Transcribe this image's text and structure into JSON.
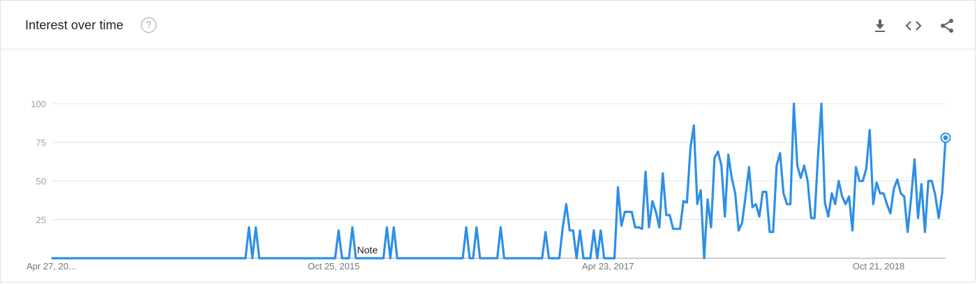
{
  "header": {
    "title": "Interest over time",
    "help_glyph": "?",
    "tools": [
      "download-icon",
      "embed-code-icon",
      "share-icon"
    ]
  },
  "chart_data": {
    "type": "line",
    "title": "Interest over time",
    "xlabel": "",
    "ylabel": "",
    "ylim": [
      0,
      100
    ],
    "yticks": [
      25,
      50,
      75,
      100
    ],
    "x_tick_labels": [
      "Apr 27, 20...",
      "Oct 25, 2015",
      "Apr 23, 2017",
      "Oct 21, 2018"
    ],
    "annotations": [
      "Note"
    ],
    "color": "#2d8fe6",
    "grid": true,
    "values": [
      0,
      0,
      0,
      0,
      0,
      0,
      0,
      0,
      0,
      0,
      0,
      0,
      0,
      0,
      0,
      0,
      0,
      0,
      0,
      0,
      0,
      0,
      0,
      0,
      0,
      0,
      0,
      0,
      0,
      0,
      0,
      0,
      0,
      0,
      0,
      0,
      0,
      0,
      0,
      0,
      0,
      0,
      0,
      0,
      0,
      0,
      0,
      0,
      0,
      0,
      0,
      0,
      0,
      0,
      0,
      0,
      0,
      20,
      0,
      20,
      0,
      0,
      0,
      0,
      0,
      0,
      0,
      0,
      0,
      0,
      0,
      0,
      0,
      0,
      0,
      0,
      0,
      0,
      0,
      0,
      0,
      0,
      0,
      18,
      0,
      0,
      0,
      20,
      0,
      0,
      0,
      0,
      0,
      0,
      0,
      0,
      0,
      20,
      0,
      20,
      0,
      0,
      0,
      0,
      0,
      0,
      0,
      0,
      0,
      0,
      0,
      0,
      0,
      0,
      0,
      0,
      0,
      0,
      0,
      0,
      20,
      0,
      0,
      20,
      0,
      0,
      0,
      0,
      0,
      0,
      20,
      0,
      0,
      0,
      0,
      0,
      0,
      0,
      0,
      0,
      0,
      0,
      0,
      17,
      0,
      0,
      0,
      0,
      20,
      35,
      18,
      18,
      0,
      18,
      0,
      0,
      0,
      18,
      0,
      18,
      0,
      0,
      0,
      0,
      46,
      21,
      30,
      30,
      30,
      20,
      20,
      19,
      56,
      20,
      37,
      30,
      20,
      55,
      28,
      28,
      19,
      19,
      19,
      37,
      36,
      71,
      86,
      35,
      44,
      0,
      38,
      20,
      65,
      69,
      60,
      27,
      67,
      52,
      42,
      18,
      23,
      40,
      59,
      33,
      35,
      27,
      43,
      43,
      17,
      17,
      60,
      68,
      42,
      35,
      35,
      100,
      60,
      52,
      60,
      50,
      26,
      26,
      66,
      100,
      36,
      27,
      42,
      35,
      50,
      40,
      35,
      40,
      18,
      59,
      50,
      50,
      58,
      83,
      35,
      49,
      42,
      42,
      35,
      29,
      45,
      51,
      42,
      40,
      17,
      39,
      64,
      26,
      48,
      17,
      50,
      50,
      41,
      26,
      42,
      78
    ]
  }
}
